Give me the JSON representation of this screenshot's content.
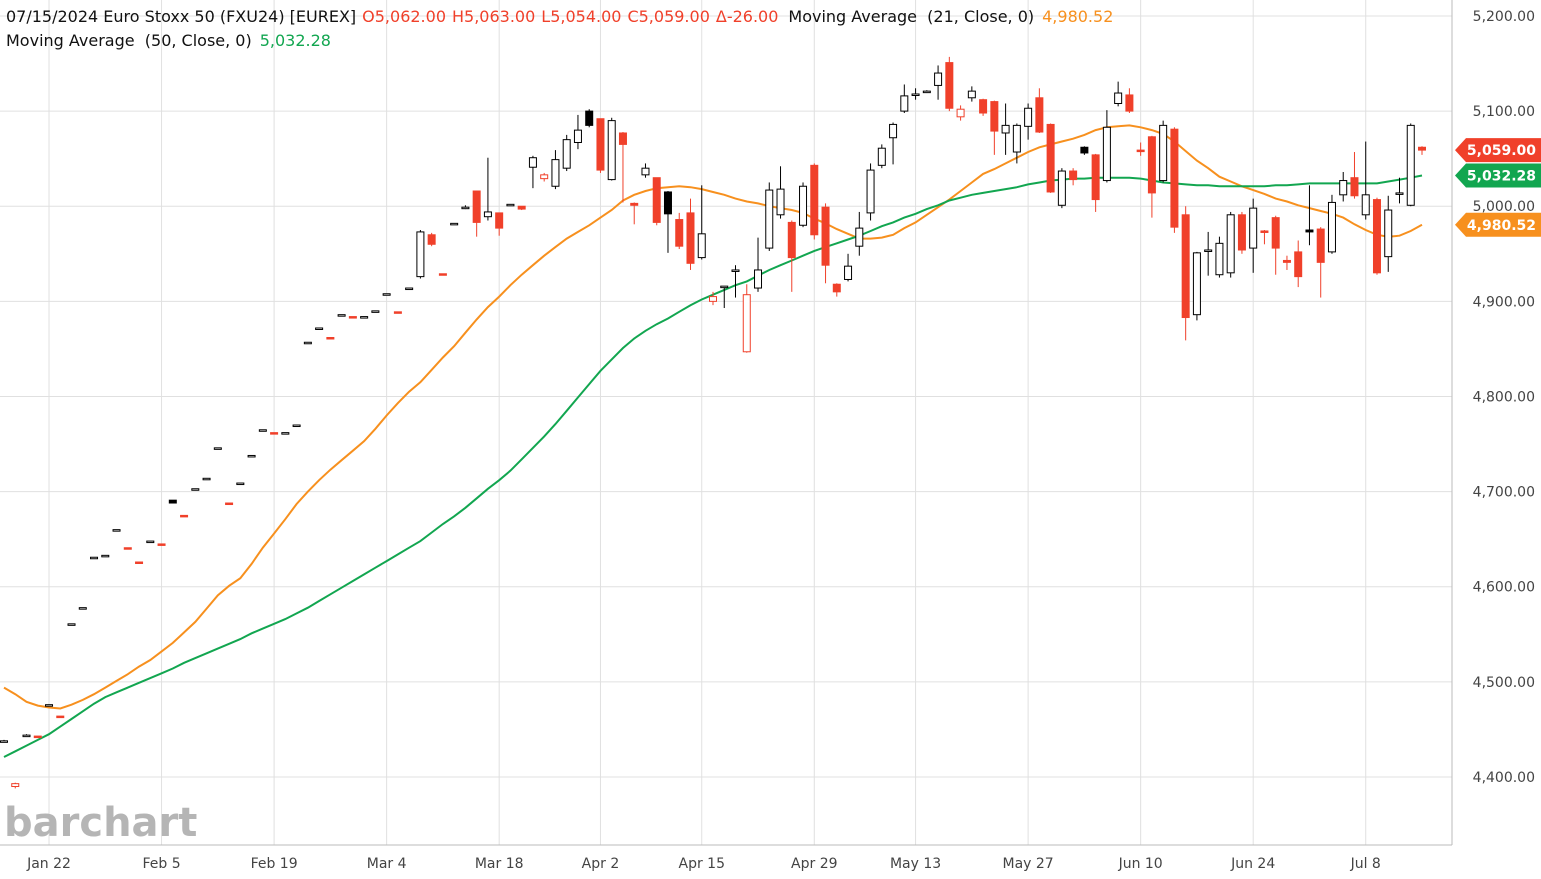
{
  "chart_data": {
    "type": "candlestick",
    "title": "07/15/2024 Euro Stoxx 50 (FXU24) [EUREX]",
    "quote": [
      "O5,062.00",
      "H5,063.00",
      "L5,054.00",
      "C5,059.00",
      "Δ-26.00"
    ],
    "quote_color": "#f0402a",
    "watermark": "barchart",
    "up_color": "#000000",
    "down_color": "#f0402a",
    "grid": true,
    "ylim": [
      4328.5,
      5216.8
    ],
    "yticks": [
      {
        "value": 4400,
        "label": "4,400.00"
      },
      {
        "value": 4500,
        "label": "4,500.00"
      },
      {
        "value": 4600,
        "label": "4,600.00"
      },
      {
        "value": 4700,
        "label": "4,700.00"
      },
      {
        "value": 4800,
        "label": "4,800.00"
      },
      {
        "value": 4900,
        "label": "4,900.00"
      },
      {
        "value": 5000,
        "label": "5,000.00"
      },
      {
        "value": 5100,
        "label": "5,100.00"
      },
      {
        "value": 5200,
        "label": "5,200.00"
      }
    ],
    "last_close_label": "5,059.00",
    "categories": [
      null,
      null,
      null,
      null,
      "Jan 22",
      null,
      null,
      null,
      null,
      null,
      null,
      null,
      null,
      null,
      "Feb 5",
      null,
      null,
      null,
      null,
      null,
      null,
      null,
      null,
      null,
      "Feb 19",
      null,
      null,
      null,
      null,
      null,
      null,
      null,
      null,
      null,
      "Mar 4",
      null,
      null,
      null,
      null,
      null,
      null,
      null,
      null,
      null,
      "Mar 18",
      null,
      null,
      null,
      null,
      null,
      null,
      null,
      null,
      "Apr 2",
      null,
      null,
      null,
      null,
      null,
      null,
      null,
      null,
      "Apr 15",
      null,
      null,
      null,
      null,
      null,
      null,
      null,
      null,
      null,
      "Apr 29",
      null,
      null,
      null,
      null,
      null,
      null,
      null,
      null,
      "May 13",
      null,
      null,
      null,
      null,
      null,
      null,
      null,
      null,
      null,
      "May 27",
      null,
      null,
      null,
      null,
      null,
      null,
      null,
      null,
      null,
      "Jun 10",
      null,
      null,
      null,
      null,
      null,
      null,
      null,
      null,
      null,
      "Jun 24",
      null,
      null,
      null,
      null,
      null,
      null,
      null,
      null,
      null,
      "Jul 8",
      null,
      null,
      null,
      null,
      null
    ],
    "open": [
      4438,
      4390,
      4443,
      4443,
      4475,
      4464,
      4560,
      4577,
      4630,
      4632,
      4659,
      4641,
      4626,
      4647,
      4645,
      4691,
      4675,
      4702,
      4713,
      4745,
      4688,
      4708,
      4737,
      4764,
      4762,
      4761,
      4769,
      4856,
      4871,
      4862,
      4885,
      4884,
      4883,
      4889,
      4907,
      4889,
      4913,
      4926,
      4970,
      4929,
      4981,
      4998,
      5016,
      4989,
      4993,
      5001,
      5000,
      5041,
      5029,
      5021,
      5040,
      5067,
      5100,
      5092,
      5028,
      5077,
      5003,
      5033,
      5030,
      5015,
      4986,
      4993,
      4946,
      4900,
      4915,
      4932,
      4847,
      4914,
      4956,
      4991,
      4983,
      4980,
      5043,
      4999,
      4918,
      4923,
      4958,
      4993,
      5043,
      5072,
      5100,
      5117,
      5120,
      5127,
      5151,
      5094,
      5114,
      5112,
      5110,
      5077,
      5057,
      5084,
      5114,
      5086,
      5001,
      5037,
      5062,
      5054,
      5027,
      5108,
      5117,
      5059,
      5073,
      5027,
      5081,
      4991,
      4886,
      4953,
      4928,
      4930,
      4991,
      4956,
      4974,
      4988,
      4943,
      4952,
      4975,
      4976,
      4952,
      5012,
      5030,
      4991,
      5007,
      4947,
      5013,
      5001,
      5062
    ],
    "high": [
      4439,
      4394,
      4445,
      4443,
      4476,
      4464,
      4561,
      4578,
      4631,
      4633,
      4660,
      4641,
      4626,
      4648,
      4645,
      4691,
      4675,
      4703,
      4714,
      4746,
      4688,
      4709,
      4738,
      4765,
      4762,
      4762,
      4770,
      4857,
      4872,
      4862,
      4886,
      4884,
      4884,
      4890,
      4908,
      4889,
      4914,
      4975,
      4972,
      4929,
      4982,
      5001,
      5016,
      5051,
      4993,
      5002,
      5000,
      5053,
      5035,
      5059,
      5075,
      5096,
      5102,
      5092,
      5093,
      5078,
      5004,
      5045,
      5030,
      5016,
      4993,
      5008,
      5022,
      4910,
      4916,
      4938,
      4918,
      4967,
      5025,
      5042,
      4985,
      5025,
      5045,
      5003,
      4919,
      4950,
      4994,
      5045,
      5065,
      5088,
      5128,
      5124,
      5122,
      5148,
      5157,
      5106,
      5126,
      5113,
      5111,
      5108,
      5087,
      5108,
      5124,
      5087,
      5040,
      5040,
      5063,
      5055,
      5101,
      5131,
      5124,
      5067,
      5074,
      5090,
      5083,
      5000,
      4952,
      4973,
      4968,
      4994,
      4994,
      5008,
      4975,
      4990,
      4948,
      4964,
      5022,
      4978,
      5012,
      5036,
      5057,
      5068,
      5009,
      5011,
      5030,
      5087,
      5063
    ],
    "low": [
      4437,
      4388,
      4443,
      4441,
      4475,
      4462,
      4560,
      4577,
      4630,
      4632,
      4659,
      4640,
      4625,
      4647,
      4644,
      4688,
      4674,
      4702,
      4713,
      4745,
      4687,
      4708,
      4737,
      4764,
      4761,
      4761,
      4769,
      4856,
      4871,
      4861,
      4885,
      4883,
      4883,
      4889,
      4907,
      4888,
      4913,
      4924,
      4958,
      4928,
      4981,
      4997,
      4968,
      4985,
      4969,
      5001,
      4996,
      5019,
      5026,
      5018,
      5037,
      5060,
      5083,
      5035,
      5027,
      5004,
      4981,
      5030,
      4980,
      4951,
      4955,
      4933,
      4944,
      4896,
      4893,
      4904,
      4846,
      4910,
      4953,
      4987,
      4910,
      4978,
      4965,
      4919,
      4905,
      4921,
      4948,
      4985,
      5040,
      5044,
      5098,
      5112,
      5119,
      5112,
      5100,
      5090,
      5110,
      5095,
      5054,
      5054,
      5045,
      5070,
      5077,
      5014,
      4998,
      5022,
      5054,
      4994,
      5025,
      5105,
      5098,
      5053,
      4988,
      5025,
      4972,
      4859,
      4880,
      4927,
      4925,
      4925,
      4950,
      4930,
      4960,
      4928,
      4933,
      4915,
      4959,
      4904,
      4950,
      5005,
      5008,
      4986,
      4928,
      4931,
      5003,
      5000,
      5054
    ],
    "close": [
      4438,
      4393,
      4444,
      4442,
      4476,
      4463,
      4561,
      4578,
      4631,
      4633,
      4660,
      4640,
      4625,
      4648,
      4644,
      4688,
      4674,
      4703,
      4714,
      4746,
      4687,
      4709,
      4738,
      4765,
      4761,
      4762,
      4770,
      4857,
      4872,
      4861,
      4886,
      4883,
      4884,
      4890,
      4908,
      4888,
      4914,
      4973,
      4960,
      4928,
      4982,
      4999,
      4983,
      4994,
      4977,
      5002,
      4997,
      5051,
      5033,
      5049,
      5070,
      5080,
      5085,
      5038,
      5090,
      5065,
      5001,
      5040,
      4983,
      4992,
      4958,
      4940,
      4971,
      4905,
      4916,
      4933,
      4907,
      4933,
      5017,
      5018,
      4946,
      5021,
      4970,
      4938,
      4910,
      4937,
      4977,
      5038,
      5061,
      5086,
      5116,
      5118,
      5121,
      5140,
      5103,
      5102,
      5121,
      5098,
      5079,
      5085,
      5085,
      5103,
      5078,
      5015,
      5037,
      5028,
      5056,
      5007,
      5083,
      5119,
      5100,
      5058,
      5014,
      5085,
      4978,
      4883,
      4951,
      4954,
      4961,
      4991,
      4954,
      4998,
      4973,
      4956,
      4941,
      4926,
      4973,
      4941,
      5004,
      5027,
      5011,
      5012,
      4930,
      4996,
      5014,
      5085,
      5059
    ],
    "series": [
      {
        "name": "Moving Average  (21, Close, 0)",
        "color": "#f7901e",
        "last_label": "4,980.52",
        "values": [
          4494,
          4487,
          4479,
          4475,
          4473,
          4472,
          4476,
          4481,
          4487,
          4494,
          4501,
          4508,
          4516,
          4523,
          4532,
          4541,
          4552,
          4563,
          4577,
          4591,
          4601,
          4609,
          4624,
          4641,
          4656,
          4671,
          4687,
          4700,
          4712,
          4723,
          4733,
          4743,
          4753,
          4766,
          4780,
          4793,
          4805,
          4815,
          4828,
          4841,
          4853,
          4867,
          4881,
          4894,
          4905,
          4917,
          4928,
          4938,
          4948,
          4957,
          4966,
          4973,
          4980,
          4988,
          4996,
          5006,
          5012,
          5016,
          5019,
          5020,
          5021,
          5020,
          5018,
          5015,
          5012,
          5008,
          5005,
          5003,
          5000,
          4998,
          4996,
          4993,
          4987,
          4982,
          4976,
          4971,
          4966,
          4966,
          4967,
          4970,
          4977,
          4983,
          4991,
          4999,
          5007,
          5016,
          5025,
          5034,
          5039,
          5045,
          5051,
          5057,
          5062,
          5065,
          5068,
          5071,
          5075,
          5080,
          5083,
          5084,
          5085,
          5083,
          5080,
          5076,
          5068,
          5058,
          5048,
          5040,
          5031,
          5026,
          5021,
          5017,
          5013,
          5008,
          5005,
          5001,
          4998,
          4995,
          4992,
          4988,
          4981,
          4975,
          4970,
          4968,
          4969,
          4974,
          4980.52
        ]
      },
      {
        "name": "Moving Average  (50, Close, 0)",
        "color": "#12a650",
        "last_label": "5,032.28",
        "values": [
          4421,
          4427,
          4433,
          4439,
          4445,
          4453,
          4461,
          4469,
          4477,
          4484,
          4489,
          4494,
          4499,
          4504,
          4509,
          4514,
          4520,
          4525,
          4530,
          4535,
          4540,
          4545,
          4551,
          4556,
          4561,
          4566,
          4572,
          4578,
          4585,
          4592,
          4599,
          4606,
          4613,
          4620,
          4627,
          4634,
          4641,
          4648,
          4657,
          4666,
          4674,
          4683,
          4693,
          4703,
          4712,
          4722,
          4734,
          4746,
          4758,
          4771,
          4785,
          4799,
          4813,
          4827,
          4839,
          4851,
          4861,
          4869,
          4876,
          4882,
          4889,
          4896,
          4902,
          4907,
          4912,
          4917,
          4921,
          4927,
          4933,
          4938,
          4943,
          4948,
          4953,
          4957,
          4961,
          4965,
          4969,
          4974,
          4979,
          4983,
          4988,
          4992,
          4997,
          5001,
          5006,
          5009,
          5012,
          5014,
          5016,
          5018,
          5020,
          5023,
          5025,
          5027,
          5028,
          5029,
          5029,
          5030,
          5030,
          5030,
          5030,
          5029,
          5027,
          5025,
          5024,
          5023,
          5022,
          5022,
          5021,
          5021,
          5021,
          5021,
          5021,
          5022,
          5022,
          5023,
          5024,
          5024,
          5024,
          5024,
          5024,
          5024,
          5024,
          5026,
          5028,
          5030,
          5032.28
        ]
      }
    ]
  }
}
